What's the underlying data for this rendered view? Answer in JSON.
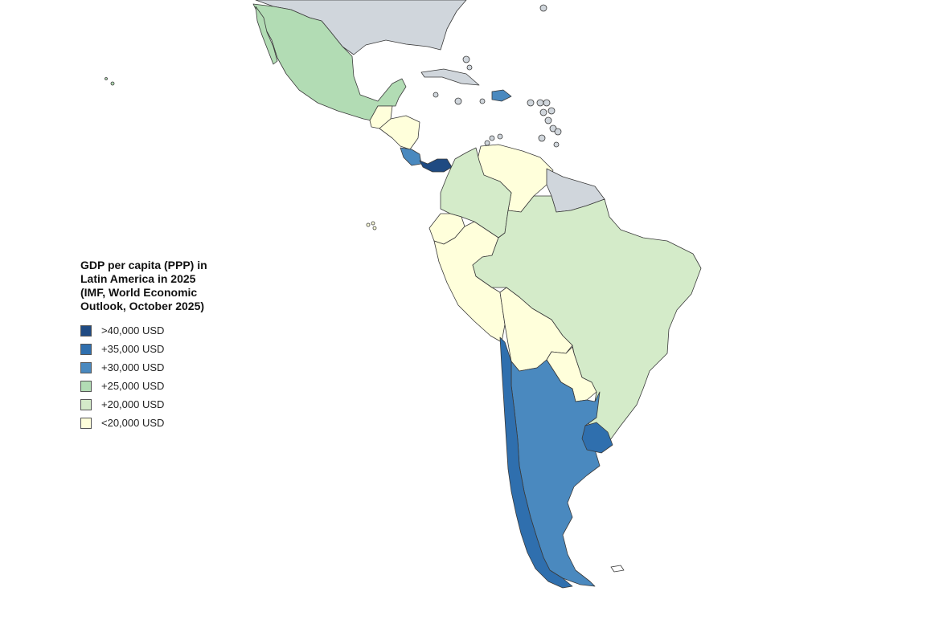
{
  "map": {
    "title": "GDP per capita (PPP) in Latin America in 2025 (IMF, World Economic Outlook, October 2025)",
    "legend": [
      {
        "label": ">40,000 USD",
        "color": "#1f4a82"
      },
      {
        "label": "+35,000 USD",
        "color": "#2f6fae"
      },
      {
        "label": "+30,000 USD",
        "color": "#4a89bf"
      },
      {
        "label": "+25,000 USD",
        "color": "#b2dcb4"
      },
      {
        "label": "+20,000 USD",
        "color": "#d4ebc9"
      },
      {
        "label": "<20,000 USD",
        "color": "#ffffdb"
      }
    ],
    "no_data_color": "#d0d6dc",
    "regions": [
      {
        "name": "north-america-no-data",
        "class": "no-data"
      },
      {
        "name": "mexico",
        "class": "+25,000 USD"
      },
      {
        "name": "guatemala",
        "class": "<20,000 USD"
      },
      {
        "name": "honduras",
        "class": "<20,000 USD"
      },
      {
        "name": "costa-rica",
        "class": "+30,000 USD"
      },
      {
        "name": "panama",
        "class": ">40,000 USD"
      },
      {
        "name": "dominican-republic",
        "class": "+30,000 USD"
      },
      {
        "name": "colombia",
        "class": "+20,000 USD"
      },
      {
        "name": "venezuela",
        "class": "<20,000 USD"
      },
      {
        "name": "guianas",
        "class": "no-data"
      },
      {
        "name": "ecuador",
        "class": "<20,000 USD"
      },
      {
        "name": "peru",
        "class": "<20,000 USD"
      },
      {
        "name": "brazil",
        "class": "+20,000 USD"
      },
      {
        "name": "bolivia",
        "class": "<20,000 USD"
      },
      {
        "name": "paraguay",
        "class": "<20,000 USD"
      },
      {
        "name": "chile",
        "class": "+35,000 USD"
      },
      {
        "name": "argentina",
        "class": "+30,000 USD"
      },
      {
        "name": "uruguay",
        "class": "+35,000 USD"
      }
    ]
  }
}
